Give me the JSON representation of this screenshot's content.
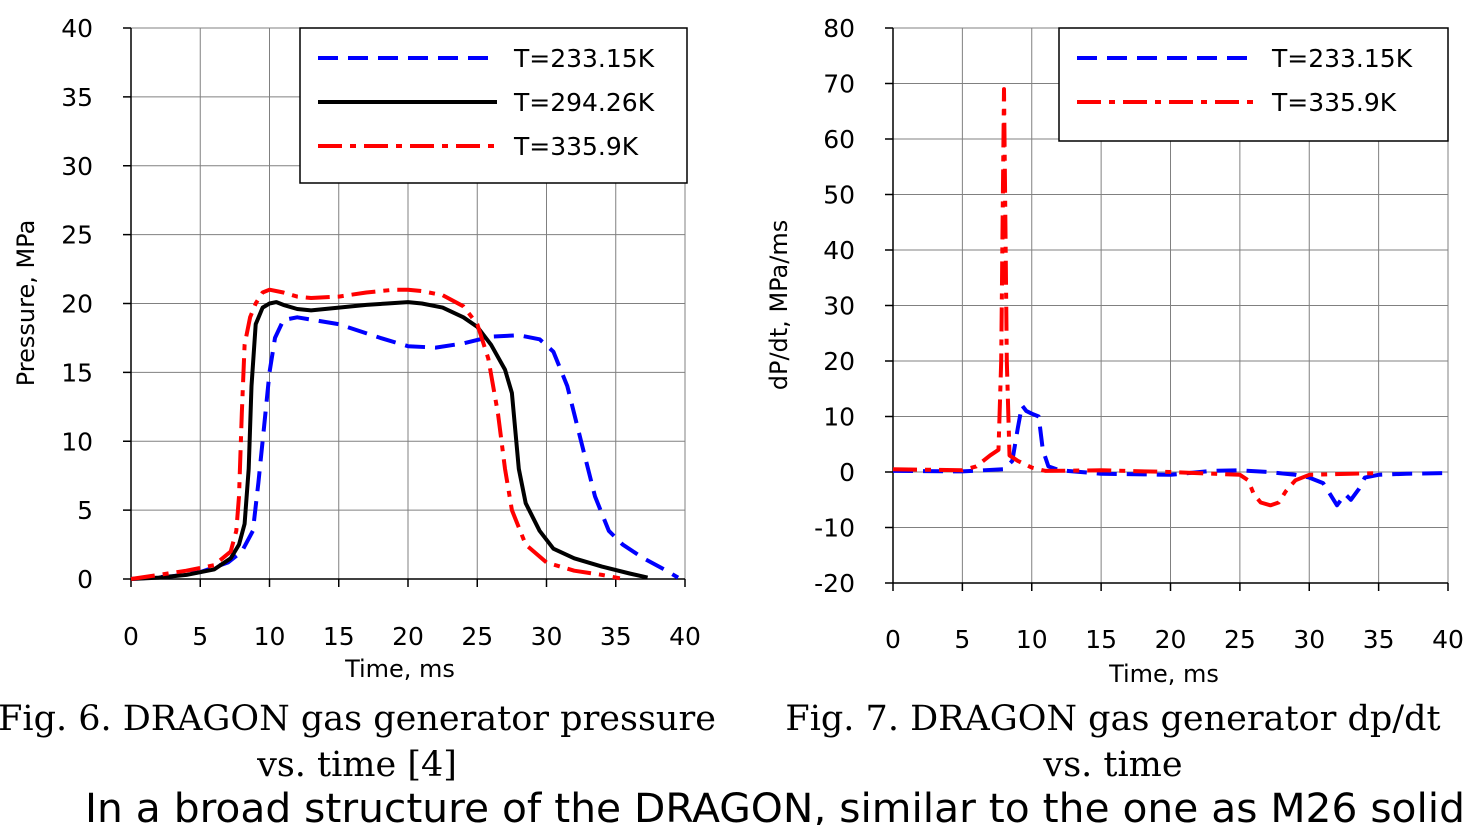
{
  "chart_data": [
    {
      "type": "line",
      "title": "",
      "xlabel": "Time, ms",
      "ylabel": "Pressure, MPa",
      "xlim": [
        0,
        40
      ],
      "ylim": [
        0,
        40
      ],
      "x_ticks": [
        0,
        5,
        10,
        15,
        20,
        25,
        30,
        35,
        40
      ],
      "y_ticks": [
        0,
        5,
        10,
        15,
        20,
        25,
        30,
        35,
        40
      ],
      "grid": true,
      "legend_position": "top-right",
      "caption": [
        "Fig. 6. DRAGON gas generator pressure",
        "vs. time [4]"
      ],
      "series": [
        {
          "name": "T=233.15K",
          "color": "#0000ff",
          "style": "dashed",
          "points": [
            [
              0,
              0
            ],
            [
              3,
              0.2
            ],
            [
              5,
              0.5
            ],
            [
              7,
              1.2
            ],
            [
              8,
              2
            ],
            [
              8.8,
              3.5
            ],
            [
              9.2,
              7
            ],
            [
              9.6,
              11
            ],
            [
              10,
              15
            ],
            [
              10.4,
              17.5
            ],
            [
              11,
              18.8
            ],
            [
              12,
              19
            ],
            [
              15,
              18.5
            ],
            [
              18,
              17.5
            ],
            [
              20,
              16.9
            ],
            [
              22,
              16.8
            ],
            [
              24,
              17.1
            ],
            [
              26,
              17.6
            ],
            [
              28,
              17.7
            ],
            [
              29.5,
              17.4
            ],
            [
              30.5,
              16.5
            ],
            [
              31.5,
              14
            ],
            [
              32.5,
              10
            ],
            [
              33.5,
              6
            ],
            [
              34.5,
              3.5
            ],
            [
              35.5,
              2.5
            ],
            [
              37,
              1.5
            ],
            [
              38.5,
              0.7
            ],
            [
              39.5,
              0.1
            ]
          ]
        },
        {
          "name": "T=294.26K",
          "color": "#000000",
          "style": "solid",
          "points": [
            [
              0,
              0
            ],
            [
              2,
              0.1
            ],
            [
              4,
              0.3
            ],
            [
              6,
              0.7
            ],
            [
              7.2,
              1.5
            ],
            [
              7.8,
              2.5
            ],
            [
              8.2,
              4
            ],
            [
              8.5,
              8
            ],
            [
              8.7,
              14
            ],
            [
              9,
              18.5
            ],
            [
              9.5,
              19.7
            ],
            [
              10,
              20
            ],
            [
              10.5,
              20.1
            ],
            [
              11,
              19.9
            ],
            [
              12,
              19.6
            ],
            [
              13,
              19.5
            ],
            [
              15,
              19.7
            ],
            [
              17,
              19.9
            ],
            [
              18.5,
              20
            ],
            [
              20,
              20.1
            ],
            [
              21,
              20
            ],
            [
              22.5,
              19.7
            ],
            [
              24,
              19
            ],
            [
              25,
              18.3
            ],
            [
              26,
              17
            ],
            [
              27,
              15.2
            ],
            [
              27.5,
              13.5
            ],
            [
              28,
              8
            ],
            [
              28.5,
              5.5
            ],
            [
              29.5,
              3.5
            ],
            [
              30.5,
              2.2
            ],
            [
              32,
              1.5
            ],
            [
              34,
              0.9
            ],
            [
              36,
              0.4
            ],
            [
              37.3,
              0.1
            ]
          ]
        },
        {
          "name": "T=335.9K",
          "color": "#ff0000",
          "style": "dashdot",
          "points": [
            [
              0,
              0
            ],
            [
              2,
              0.3
            ],
            [
              4,
              0.6
            ],
            [
              6,
              1
            ],
            [
              7.2,
              2
            ],
            [
              7.6,
              3.5
            ],
            [
              7.8,
              6
            ],
            [
              8,
              12
            ],
            [
              8.2,
              17
            ],
            [
              8.6,
              19
            ],
            [
              9,
              20
            ],
            [
              9.5,
              20.8
            ],
            [
              10,
              21
            ],
            [
              11,
              20.8
            ],
            [
              12,
              20.5
            ],
            [
              13,
              20.4
            ],
            [
              15,
              20.5
            ],
            [
              17,
              20.8
            ],
            [
              19,
              21
            ],
            [
              20,
              21
            ],
            [
              21,
              20.9
            ],
            [
              22.5,
              20.6
            ],
            [
              24,
              19.8
            ],
            [
              25,
              18.5
            ],
            [
              25.8,
              16
            ],
            [
              26.5,
              12
            ],
            [
              27,
              8
            ],
            [
              27.5,
              5
            ],
            [
              28.5,
              2.5
            ],
            [
              30,
              1.2
            ],
            [
              32,
              0.6
            ],
            [
              34,
              0.3
            ],
            [
              35.3,
              0.05
            ]
          ]
        }
      ]
    },
    {
      "type": "line",
      "title": "",
      "xlabel": "Time, ms",
      "ylabel": "dP/dt, MPa/ms",
      "xlim": [
        0,
        40
      ],
      "ylim": [
        -20,
        80
      ],
      "x_ticks": [
        0,
        5,
        10,
        15,
        20,
        25,
        30,
        35,
        40
      ],
      "y_ticks": [
        -20,
        -10,
        0,
        10,
        20,
        30,
        40,
        50,
        60,
        70,
        80
      ],
      "grid": true,
      "legend_position": "top-right",
      "caption": [
        "Fig. 7. DRAGON gas generator dp/dt",
        "vs. time"
      ],
      "series": [
        {
          "name": "T=233.15K",
          "color": "#0000ff",
          "style": "dashed",
          "points": [
            [
              0,
              0.2
            ],
            [
              5,
              0.1
            ],
            [
              8,
              0.5
            ],
            [
              8.6,
              2
            ],
            [
              9,
              8
            ],
            [
              9.3,
              12
            ],
            [
              9.6,
              11
            ],
            [
              10,
              10.5
            ],
            [
              10.5,
              10
            ],
            [
              10.8,
              4
            ],
            [
              11.2,
              1
            ],
            [
              12,
              0.3
            ],
            [
              15,
              -0.3
            ],
            [
              20,
              -0.5
            ],
            [
              23,
              0.2
            ],
            [
              25,
              0.3
            ],
            [
              27,
              0
            ],
            [
              29,
              -0.5
            ],
            [
              30,
              -1
            ],
            [
              31,
              -2
            ],
            [
              31.5,
              -4
            ],
            [
              32,
              -6
            ],
            [
              32.6,
              -4
            ],
            [
              33,
              -5
            ],
            [
              33.6,
              -3
            ],
            [
              34,
              -1
            ],
            [
              35,
              -0.5
            ],
            [
              37,
              -0.3
            ],
            [
              40,
              -0.2
            ]
          ]
        },
        {
          "name": "T=335.9K",
          "color": "#ff0000",
          "style": "dashdot",
          "points": [
            [
              0,
              0.5
            ],
            [
              5,
              0.3
            ],
            [
              6,
              1
            ],
            [
              7,
              3
            ],
            [
              7.6,
              4
            ],
            [
              7.8,
              20
            ],
            [
              7.9,
              45
            ],
            [
              8,
              69
            ],
            [
              8.1,
              45
            ],
            [
              8.2,
              20
            ],
            [
              8.4,
              3
            ],
            [
              9,
              2
            ],
            [
              10,
              0.8
            ],
            [
              11,
              0.2
            ],
            [
              15,
              0.3
            ],
            [
              20,
              0
            ],
            [
              25,
              -0.5
            ],
            [
              25.6,
              -1.5
            ],
            [
              26,
              -4
            ],
            [
              26.5,
              -5.5
            ],
            [
              27.2,
              -6
            ],
            [
              27.8,
              -5.5
            ],
            [
              28.3,
              -3.5
            ],
            [
              29,
              -1.5
            ],
            [
              30,
              -0.5
            ],
            [
              33,
              -0.3
            ],
            [
              35,
              -0.2
            ]
          ]
        }
      ]
    }
  ],
  "body_text": "In a broad structure of the DRAGON, similar to the one as M26 solid"
}
